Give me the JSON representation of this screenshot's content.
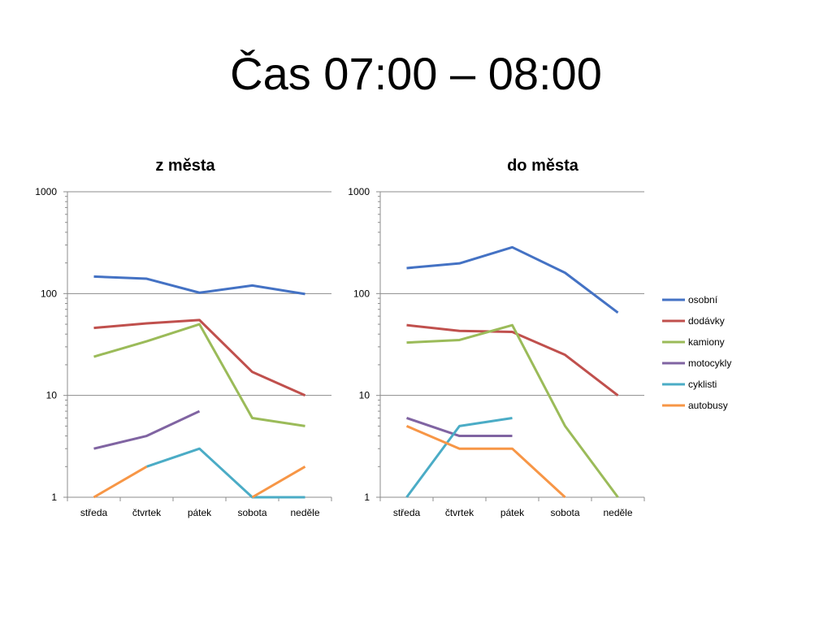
{
  "slide": {
    "title": "Čas 07:00 – 08:00"
  },
  "chart_data": [
    {
      "type": "line",
      "title": "z města",
      "scale": "log",
      "ylim": [
        1,
        1000
      ],
      "yticks": [
        "1",
        "10",
        "100",
        "1000"
      ],
      "grid": "horizontal major gridlines",
      "categories": [
        "středa",
        "čtvrtek",
        "pátek",
        "sobota",
        "neděle"
      ],
      "series": [
        {
          "name": "osobní",
          "color": "#4472C4",
          "values": [
            147,
            140,
            102,
            120,
            99
          ]
        },
        {
          "name": "dodávky",
          "color": "#C0504D",
          "values": [
            46,
            51,
            55,
            17,
            10
          ]
        },
        {
          "name": "kamiony",
          "color": "#9BBB59",
          "values": [
            24,
            34,
            50,
            6,
            5
          ]
        },
        {
          "name": "motocykly",
          "color": "#8064A2",
          "values": [
            3,
            4,
            7,
            null,
            null
          ]
        },
        {
          "name": "cyklisti",
          "color": "#4BACC6",
          "values": [
            null,
            2,
            3,
            1,
            1
          ]
        },
        {
          "name": "autobusy",
          "color": "#F79646",
          "values": [
            1,
            2,
            null,
            1,
            2
          ]
        }
      ]
    },
    {
      "type": "line",
      "title": "do města",
      "scale": "log",
      "ylim": [
        1,
        1000
      ],
      "yticks": [
        "1",
        "10",
        "100",
        "1000"
      ],
      "grid": "horizontal major gridlines",
      "legend": "right",
      "categories": [
        "středa",
        "čtvrtek",
        "pátek",
        "sobota",
        "neděle"
      ],
      "series": [
        {
          "name": "osobní",
          "color": "#4472C4",
          "values": [
            178,
            198,
            285,
            160,
            65
          ]
        },
        {
          "name": "dodávky",
          "color": "#C0504D",
          "values": [
            49,
            43,
            42,
            25,
            10
          ]
        },
        {
          "name": "kamiony",
          "color": "#9BBB59",
          "values": [
            33,
            35,
            49,
            5,
            1
          ]
        },
        {
          "name": "motocykly",
          "color": "#8064A2",
          "values": [
            6,
            4,
            4,
            null,
            null
          ]
        },
        {
          "name": "cyklisti",
          "color": "#4BACC6",
          "values": [
            1,
            5,
            6,
            null,
            null
          ]
        },
        {
          "name": "autobusy",
          "color": "#F79646",
          "values": [
            5,
            3,
            3,
            1,
            null
          ]
        }
      ]
    }
  ]
}
